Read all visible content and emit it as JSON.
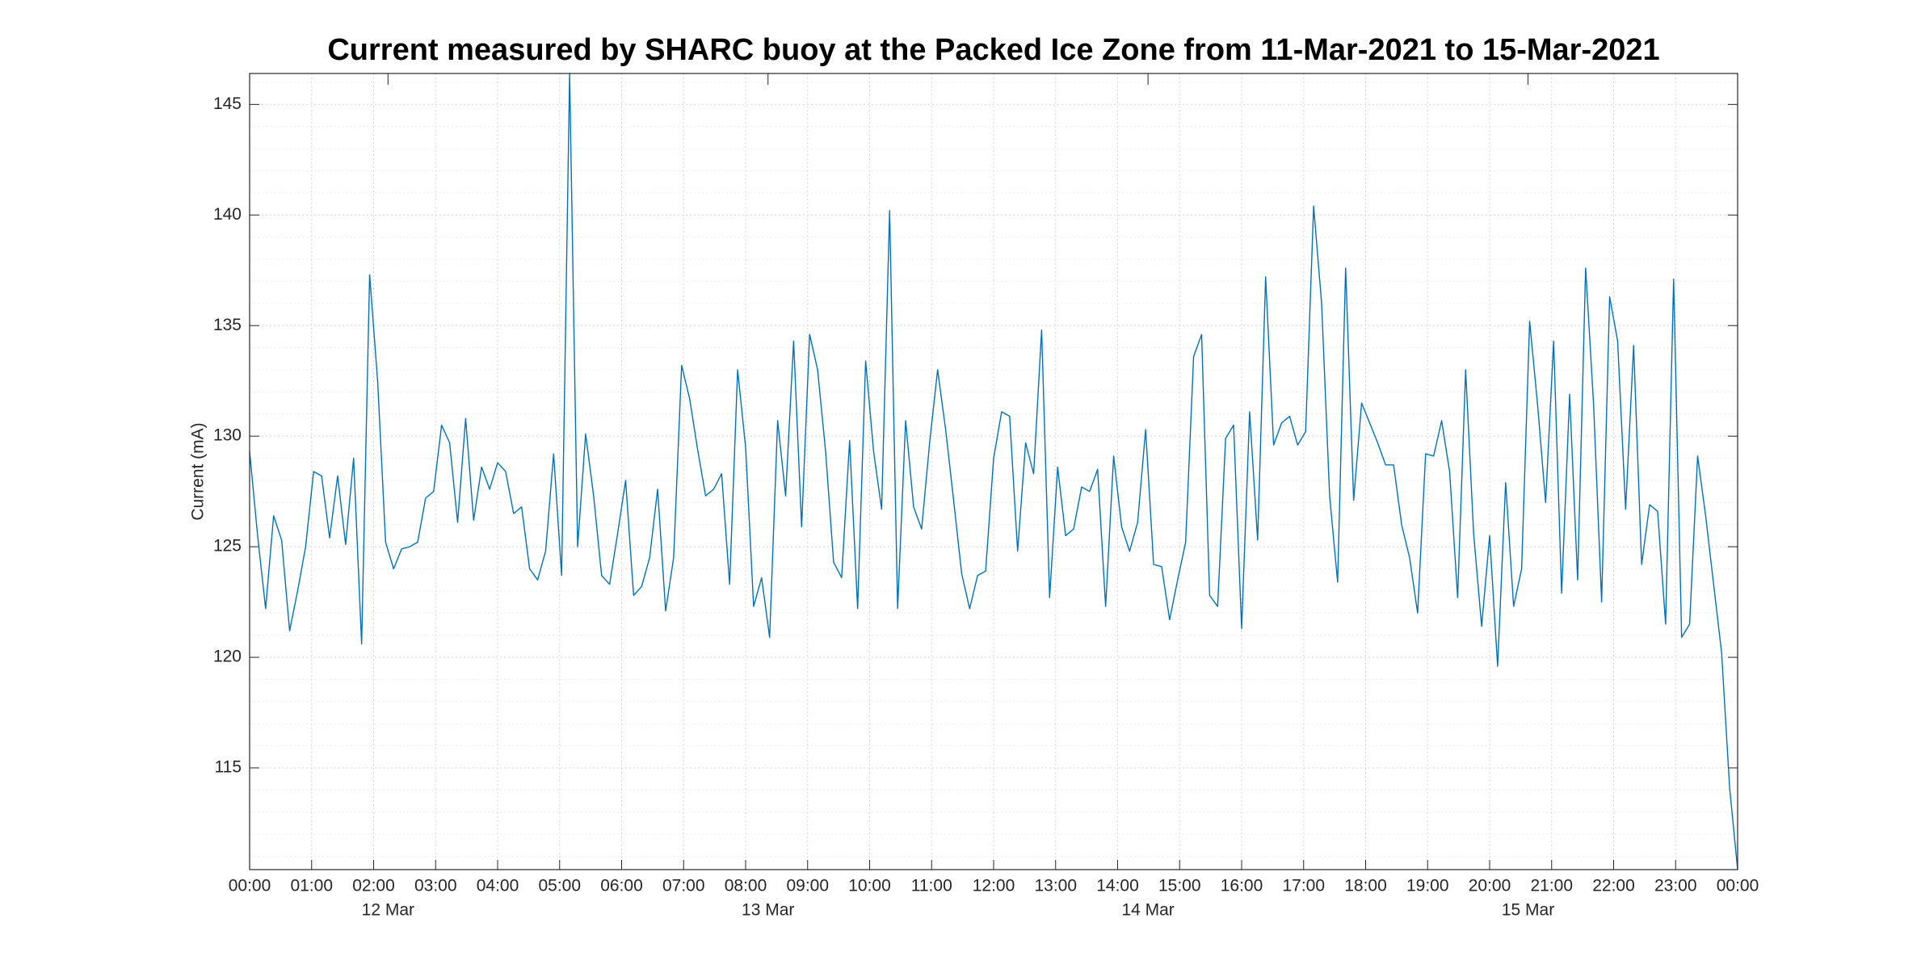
{
  "chart_data": {
    "type": "line",
    "title": "Current measured by SHARC buoy at the Packed Ice Zone from 11-Mar-2021 to 15-Mar-2021",
    "y_label": "Current (mA)",
    "x": [
      0,
      0.5,
      1,
      1.5,
      2,
      2.5,
      3,
      3.5,
      4,
      4.5,
      5,
      5.5,
      6,
      6.5,
      7,
      7.5,
      8,
      8.5,
      9,
      9.5,
      10,
      10.5,
      11,
      11.5,
      12,
      12.5,
      13,
      13.5,
      14,
      14.5,
      15,
      15.5,
      16,
      16.5,
      17,
      17.5,
      18,
      18.5,
      19,
      19.5,
      20,
      20.5,
      21,
      21.5,
      22,
      22.5,
      23,
      23.5,
      24,
      24.5,
      25,
      25.5,
      26,
      26.5,
      27,
      27.5,
      28,
      28.5,
      29,
      29.5,
      30,
      30.5,
      31,
      31.5,
      32,
      32.5,
      33,
      33.5,
      34,
      34.5,
      35,
      35.5,
      36,
      36.5,
      37,
      37.5,
      38,
      38.5,
      39,
      39.5,
      40,
      40.5,
      41,
      41.5,
      42,
      42.5,
      43,
      43.5,
      44,
      44.5,
      45,
      45.5,
      46,
      46.5,
      47,
      47.5,
      48,
      48.5,
      49,
      49.5,
      50,
      50.5,
      51,
      51.5,
      52,
      52.5,
      53,
      53.5,
      54,
      54.5,
      55,
      55.5,
      56,
      56.5,
      57,
      57.5,
      58,
      58.5,
      59,
      59.5,
      60,
      60.5,
      61,
      61.5,
      62,
      62.5,
      63,
      63.5,
      64,
      64.5,
      65,
      65.5,
      66,
      66.5,
      67,
      67.5,
      68,
      68.5,
      69,
      69.5,
      70,
      70.5,
      71,
      71.5,
      72,
      72.5,
      73,
      73.5,
      74,
      74.5,
      75,
      75.5,
      76,
      76.5,
      77,
      77.5,
      78,
      78.5,
      79,
      79.5,
      80,
      80.5,
      81,
      81.5,
      82,
      82.5,
      83,
      83.5,
      84,
      84.5,
      85,
      85.5,
      86,
      86.5,
      87,
      87.5,
      88,
      88.5,
      89,
      89.5,
      90,
      90.5,
      91,
      91.5,
      92,
      92.5,
      93
    ],
    "series": [
      {
        "color": "#0072bd",
        "values": [
          129.3,
          125.5,
          122.2,
          126.4,
          125.3,
          121.2,
          123,
          125,
          128.4,
          128.2,
          125.4,
          128.2,
          125.1,
          129,
          120.6,
          137.3,
          132.5,
          125.2,
          124,
          124.9,
          125,
          125.2,
          127.2,
          127.5,
          130.5,
          129.7,
          126.1,
          130.8,
          126.2,
          128.6,
          127.6,
          128.8,
          128.4,
          126.5,
          126.8,
          124,
          123.5,
          124.8,
          129.2,
          123.7,
          146.4,
          125,
          130.1,
          127.3,
          123.7,
          123.3,
          125.6,
          128,
          122.8,
          123.2,
          124.5,
          127.6,
          122.1,
          124.5,
          133.2,
          131.7,
          129.4,
          127.3,
          127.6,
          128.3,
          123.3,
          133,
          129.5,
          122.3,
          123.6,
          120.9,
          130.7,
          127.3,
          134.3,
          125.9,
          134.6,
          133,
          129.3,
          124.3,
          123.6,
          129.8,
          122.2,
          133.4,
          129.3,
          126.7,
          140.2,
          122.2,
          130.7,
          126.8,
          125.8,
          129.7,
          133,
          130.3,
          127.1,
          123.8,
          122.2,
          123.7,
          123.9,
          129,
          131.1,
          130.9,
          124.8,
          129.7,
          128.3,
          134.8,
          122.7,
          128.6,
          125.5,
          125.8,
          127.7,
          127.5,
          128.5,
          122.3,
          129.1,
          125.9,
          124.8,
          126.1,
          130.3,
          124.2,
          124.1,
          121.7,
          123.5,
          125.2,
          133.6,
          134.6,
          122.8,
          122.3,
          129.9,
          130.5,
          121.3,
          131.1,
          125.3,
          137.2,
          129.6,
          130.6,
          130.9,
          129.6,
          130.2,
          140.4,
          136,
          127.3,
          123.4,
          137.6,
          127.1,
          131.5,
          130.6,
          129.7,
          128.7,
          128.7,
          126,
          124.5,
          122,
          129.2,
          129.1,
          130.7,
          128.4,
          122.7,
          133,
          125.6,
          121.4,
          125.5,
          119.6,
          127.9,
          122.3,
          124,
          135.2,
          131.4,
          127,
          134.3,
          122.9,
          131.9,
          123.5,
          137.6,
          131.4,
          122.5,
          136.3,
          134.3,
          126.7,
          134.1,
          124.2,
          126.9,
          126.6,
          121.5,
          137.1,
          120.9,
          121.5,
          129.1,
          126.4,
          123.3,
          120.2,
          114.1,
          110.4
        ]
      }
    ],
    "xlim": [
      0,
      93
    ],
    "xticks": [
      {
        "value": 0,
        "label": "00:00"
      },
      {
        "value": 3.875,
        "label": "01:00"
      },
      {
        "value": 7.75,
        "label": "02:00"
      },
      {
        "value": 11.625,
        "label": "03:00"
      },
      {
        "value": 15.5,
        "label": "04:00"
      },
      {
        "value": 19.375,
        "label": "05:00"
      },
      {
        "value": 23.25,
        "label": "06:00"
      },
      {
        "value": 27.125,
        "label": "07:00"
      },
      {
        "value": 31,
        "label": "08:00"
      },
      {
        "value": 34.875,
        "label": "09:00"
      },
      {
        "value": 38.75,
        "label": "10:00"
      },
      {
        "value": 42.625,
        "label": "11:00"
      },
      {
        "value": 46.5,
        "label": "12:00"
      },
      {
        "value": 50.375,
        "label": "13:00"
      },
      {
        "value": 54.25,
        "label": "14:00"
      },
      {
        "value": 58.125,
        "label": "15:00"
      },
      {
        "value": 62,
        "label": "16:00"
      },
      {
        "value": 65.875,
        "label": "17:00"
      },
      {
        "value": 69.75,
        "label": "18:00"
      },
      {
        "value": 73.625,
        "label": "19:00"
      },
      {
        "value": 77.5,
        "label": "20:00"
      },
      {
        "value": 81.375,
        "label": "21:00"
      },
      {
        "value": 85.25,
        "label": "22:00"
      },
      {
        "value": 89.125,
        "label": "23:00"
      },
      {
        "value": 93,
        "label": "00:00"
      }
    ],
    "date_labels": [
      {
        "value": 8.65,
        "label": "12 Mar"
      },
      {
        "value": 32.4,
        "label": "13 Mar"
      },
      {
        "value": 56.15,
        "label": "14 Mar"
      },
      {
        "value": 79.9,
        "label": "15 Mar"
      }
    ],
    "ylim": [
      110.4,
      146.4
    ],
    "yticks": [
      115,
      120,
      125,
      130,
      135,
      140,
      145
    ],
    "grid": true,
    "minor_grid": true
  }
}
